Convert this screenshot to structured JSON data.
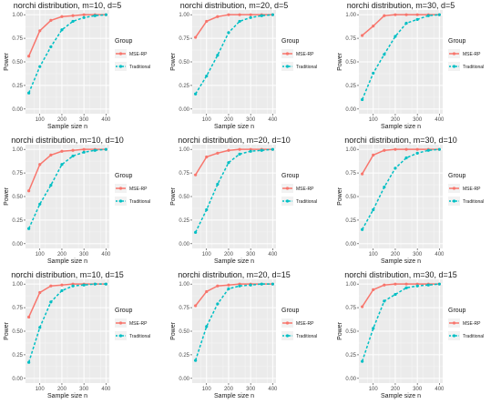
{
  "chart_data": {
    "type": "line",
    "x_label": "Sample size n",
    "y_label": "Power",
    "x_ticks": [
      100,
      200,
      300,
      400
    ],
    "y_ticks": [
      "0.00",
      "0.25",
      "0.50",
      "0.75",
      "1.00"
    ],
    "xlim": [
      35,
      415
    ],
    "ylim": [
      -0.05,
      1.05
    ],
    "legend_title": "Group",
    "legend_position": "right",
    "grid": true,
    "background": "#ebebeb",
    "x": [
      50,
      100,
      150,
      200,
      250,
      300,
      350,
      400
    ],
    "series_style": [
      {
        "name": "MSE-RP",
        "color": "#f8766d",
        "dash": "solid"
      },
      {
        "name": "Traditional",
        "color": "#00bfc4",
        "dash": "dashed"
      }
    ],
    "panels": [
      {
        "title": "norchi distribution, m=10, d=5",
        "series": [
          {
            "name": "MSE-RP",
            "values": [
              0.56,
              0.83,
              0.94,
              0.98,
              0.99,
              1.0,
              1.0,
              1.0
            ]
          },
          {
            "name": "Traditional",
            "values": [
              0.17,
              0.45,
              0.66,
              0.84,
              0.93,
              0.97,
              0.99,
              1.0
            ]
          }
        ]
      },
      {
        "title": "norchi distribution, m=20, d=5",
        "series": [
          {
            "name": "MSE-RP",
            "values": [
              0.76,
              0.93,
              0.98,
              1.0,
              1.0,
              1.0,
              1.0,
              1.0
            ]
          },
          {
            "name": "Traditional",
            "values": [
              0.16,
              0.35,
              0.57,
              0.81,
              0.93,
              0.97,
              0.99,
              1.0
            ]
          }
        ]
      },
      {
        "title": "norchi distribution, m=30, d=5",
        "series": [
          {
            "name": "MSE-RP",
            "values": [
              0.78,
              0.88,
              0.99,
              1.0,
              1.0,
              1.0,
              1.0,
              1.0
            ]
          },
          {
            "name": "Traditional",
            "values": [
              0.1,
              0.38,
              0.58,
              0.77,
              0.91,
              0.95,
              0.99,
              1.0
            ]
          }
        ]
      },
      {
        "title": "norchi distribution, m=10, d=10",
        "series": [
          {
            "name": "MSE-RP",
            "values": [
              0.56,
              0.84,
              0.94,
              0.98,
              0.99,
              1.0,
              1.0,
              1.0
            ]
          },
          {
            "name": "Traditional",
            "values": [
              0.16,
              0.42,
              0.62,
              0.84,
              0.93,
              0.97,
              0.99,
              1.0
            ]
          }
        ]
      },
      {
        "title": "norchi distribution, m=20, d=10",
        "series": [
          {
            "name": "MSE-RP",
            "values": [
              0.73,
              0.92,
              0.96,
              0.99,
              1.0,
              1.0,
              1.0,
              1.0
            ]
          },
          {
            "name": "Traditional",
            "values": [
              0.12,
              0.36,
              0.63,
              0.86,
              0.95,
              0.98,
              0.99,
              1.0
            ]
          }
        ]
      },
      {
        "title": "norchi distribution, m=30, d=10",
        "series": [
          {
            "name": "MSE-RP",
            "values": [
              0.74,
              0.94,
              0.99,
              1.0,
              1.0,
              1.0,
              1.0,
              1.0
            ]
          },
          {
            "name": "Traditional",
            "values": [
              0.15,
              0.36,
              0.6,
              0.8,
              0.91,
              0.96,
              0.99,
              1.0
            ]
          }
        ]
      },
      {
        "title": "norchi distribution, m=10, d=15",
        "series": [
          {
            "name": "MSE-RP",
            "values": [
              0.65,
              0.91,
              0.98,
              0.99,
              1.0,
              1.0,
              1.0,
              1.0
            ]
          },
          {
            "name": "Traditional",
            "values": [
              0.17,
              0.54,
              0.81,
              0.93,
              0.98,
              0.99,
              1.0,
              1.0
            ]
          }
        ]
      },
      {
        "title": "norchi distribution, m=20, d=15",
        "series": [
          {
            "name": "MSE-RP",
            "values": [
              0.77,
              0.92,
              0.98,
              0.99,
              1.0,
              1.0,
              1.0,
              1.0
            ]
          },
          {
            "name": "Traditional",
            "values": [
              0.19,
              0.55,
              0.79,
              0.95,
              0.98,
              0.99,
              1.0,
              1.0
            ]
          }
        ]
      },
      {
        "title": "norchi distribution, m=30, d=15",
        "series": [
          {
            "name": "MSE-RP",
            "values": [
              0.76,
              0.94,
              0.99,
              1.0,
              1.0,
              1.0,
              1.0,
              1.0
            ]
          },
          {
            "name": "Traditional",
            "values": [
              0.18,
              0.53,
              0.82,
              0.89,
              0.96,
              0.98,
              0.99,
              1.0
            ]
          }
        ]
      }
    ]
  }
}
